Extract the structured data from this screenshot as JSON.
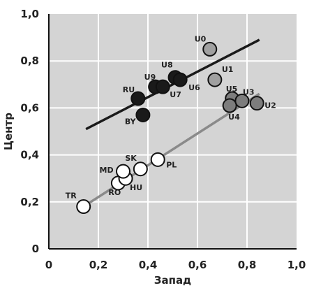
{
  "chart_data": {
    "type": "scatter",
    "title": "",
    "xlabel": "Запад",
    "ylabel": "Центр",
    "xlim": [
      0,
      1.0
    ],
    "ylim": [
      0,
      1.0
    ],
    "xticks": [
      "0",
      "0,2",
      "0,4",
      "0,6",
      "0,8",
      "1,0"
    ],
    "yticks": [
      "0",
      "0,2",
      "0,4",
      "0,6",
      "0,8",
      "1,0"
    ],
    "grid": true,
    "background": "#d4d4d4",
    "series": [
      {
        "fill": "#1a1a1a",
        "points": [
          {
            "label": "RU",
            "x": 0.36,
            "y": 0.64
          },
          {
            "label": "BY",
            "x": 0.38,
            "y": 0.57
          },
          {
            "label": "U9",
            "x": 0.43,
            "y": 0.69
          },
          {
            "label": "U7",
            "x": 0.46,
            "y": 0.69
          },
          {
            "label": "U8",
            "x": 0.51,
            "y": 0.73
          },
          {
            "label": "U6",
            "x": 0.53,
            "y": 0.72
          }
        ]
      },
      {
        "fill": "#a0a0a0",
        "points": [
          {
            "label": "U0",
            "x": 0.65,
            "y": 0.85
          },
          {
            "label": "U1",
            "x": 0.67,
            "y": 0.72
          }
        ]
      },
      {
        "fill": "#7d7d7d",
        "points": [
          {
            "label": "U5",
            "x": 0.74,
            "y": 0.64
          },
          {
            "label": "U4",
            "x": 0.73,
            "y": 0.61
          },
          {
            "label": "U3",
            "x": 0.78,
            "y": 0.63
          },
          {
            "label": "U2",
            "x": 0.84,
            "y": 0.62
          }
        ]
      },
      {
        "fill": "#ffffff",
        "points": [
          {
            "label": "TR",
            "x": 0.14,
            "y": 0.18
          },
          {
            "label": "RO",
            "x": 0.28,
            "y": 0.28
          },
          {
            "label": "HU",
            "x": 0.31,
            "y": 0.3
          },
          {
            "label": "MD",
            "x": 0.3,
            "y": 0.33
          },
          {
            "label": "SK",
            "x": 0.37,
            "y": 0.34
          },
          {
            "label": "PL",
            "x": 0.44,
            "y": 0.38
          }
        ]
      }
    ],
    "trend_lines": [
      {
        "color": "#1a1a1a",
        "x": [
          0.15,
          0.85
        ],
        "y": [
          0.51,
          0.89
        ]
      },
      {
        "color": "#8a8a8a",
        "x": [
          0.14,
          0.85
        ],
        "y": [
          0.18,
          0.66
        ]
      }
    ]
  }
}
